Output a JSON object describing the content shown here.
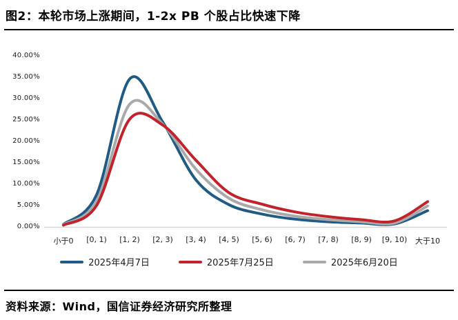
{
  "title": "图2：本轮市场上涨期间，1-2x PB 个股占比快速下降",
  "source": "资料来源：Wind，国信证券经济研究所整理",
  "chart_data": {
    "type": "line",
    "title": "本轮市场上涨期间，1-2x PB 个股占比快速下降",
    "categories": [
      "小于0",
      "[0, 1)",
      "[1, 2)",
      "[2, 3)",
      "[3, 4)",
      "[4, 5)",
      "[5, 6)",
      "[6, 7)",
      "[7, 8)",
      "[8, 9)",
      "[9, 10)",
      "大于10"
    ],
    "series": [
      {
        "name": "2025年4月7日",
        "color": "#1F5B84",
        "values": [
          0.6,
          7.5,
          34.6,
          24.5,
          11.0,
          5.2,
          3.0,
          1.8,
          1.2,
          0.9,
          0.7,
          3.8
        ]
      },
      {
        "name": "2025年7月25日",
        "color": "#C2222C",
        "values": [
          0.4,
          5.0,
          25.2,
          23.8,
          15.6,
          8.0,
          5.3,
          3.5,
          2.4,
          1.7,
          1.4,
          5.9
        ]
      },
      {
        "name": "2025年6月20日",
        "color": "#A9A9A9",
        "values": [
          0.5,
          6.0,
          28.7,
          24.0,
          13.5,
          6.7,
          4.0,
          2.5,
          1.7,
          1.2,
          0.9,
          4.9
        ]
      }
    ],
    "y_ticks": [
      "40.00%",
      "35.00%",
      "30.00%",
      "25.00%",
      "20.00%",
      "15.00%",
      "10.00%",
      "5.00%",
      "0.00%"
    ],
    "ylim": [
      0,
      40
    ],
    "xlabel": "",
    "ylabel": "",
    "grid": false,
    "legend_position": "bottom",
    "axis_line_color": "#d6d6d6"
  }
}
